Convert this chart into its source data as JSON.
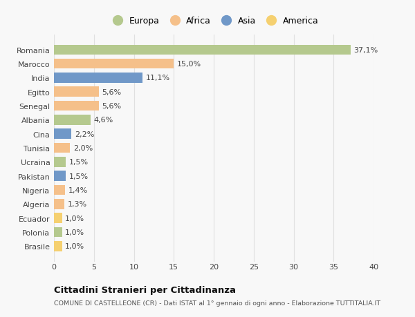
{
  "countries": [
    "Romania",
    "Marocco",
    "India",
    "Egitto",
    "Senegal",
    "Albania",
    "Cina",
    "Tunisia",
    "Ucraina",
    "Pakistan",
    "Nigeria",
    "Algeria",
    "Ecuador",
    "Polonia",
    "Brasile"
  ],
  "values": [
    37.1,
    15.0,
    11.1,
    5.6,
    5.6,
    4.6,
    2.2,
    2.0,
    1.5,
    1.5,
    1.4,
    1.3,
    1.0,
    1.0,
    1.0
  ],
  "labels": [
    "37,1%",
    "15,0%",
    "11,1%",
    "5,6%",
    "5,6%",
    "4,6%",
    "2,2%",
    "2,0%",
    "1,5%",
    "1,5%",
    "1,4%",
    "1,3%",
    "1,0%",
    "1,0%",
    "1,0%"
  ],
  "colors": [
    "#b5c98e",
    "#f5c08a",
    "#7098c8",
    "#f5c08a",
    "#f5c08a",
    "#b5c98e",
    "#7098c8",
    "#f5c08a",
    "#b5c98e",
    "#7098c8",
    "#f5c08a",
    "#f5c08a",
    "#f5d070",
    "#b5c98e",
    "#f5d070"
  ],
  "continent_labels": [
    "Europa",
    "Africa",
    "Asia",
    "America"
  ],
  "continent_colors": [
    "#b5c98e",
    "#f5c08a",
    "#7098c8",
    "#f5d070"
  ],
  "title": "Cittadini Stranieri per Cittadinanza",
  "subtitle": "COMUNE DI CASTELLEONE (CR) - Dati ISTAT al 1° gennaio di ogni anno - Elaborazione TUTTITALIA.IT",
  "xlim": [
    0,
    40
  ],
  "xticks": [
    0,
    5,
    10,
    15,
    20,
    25,
    30,
    35,
    40
  ],
  "bg_color": "#f8f8f8",
  "grid_color": "#e0e0e0",
  "bar_height": 0.72,
  "label_fontsize": 8,
  "tick_fontsize": 8,
  "legend_fontsize": 9
}
